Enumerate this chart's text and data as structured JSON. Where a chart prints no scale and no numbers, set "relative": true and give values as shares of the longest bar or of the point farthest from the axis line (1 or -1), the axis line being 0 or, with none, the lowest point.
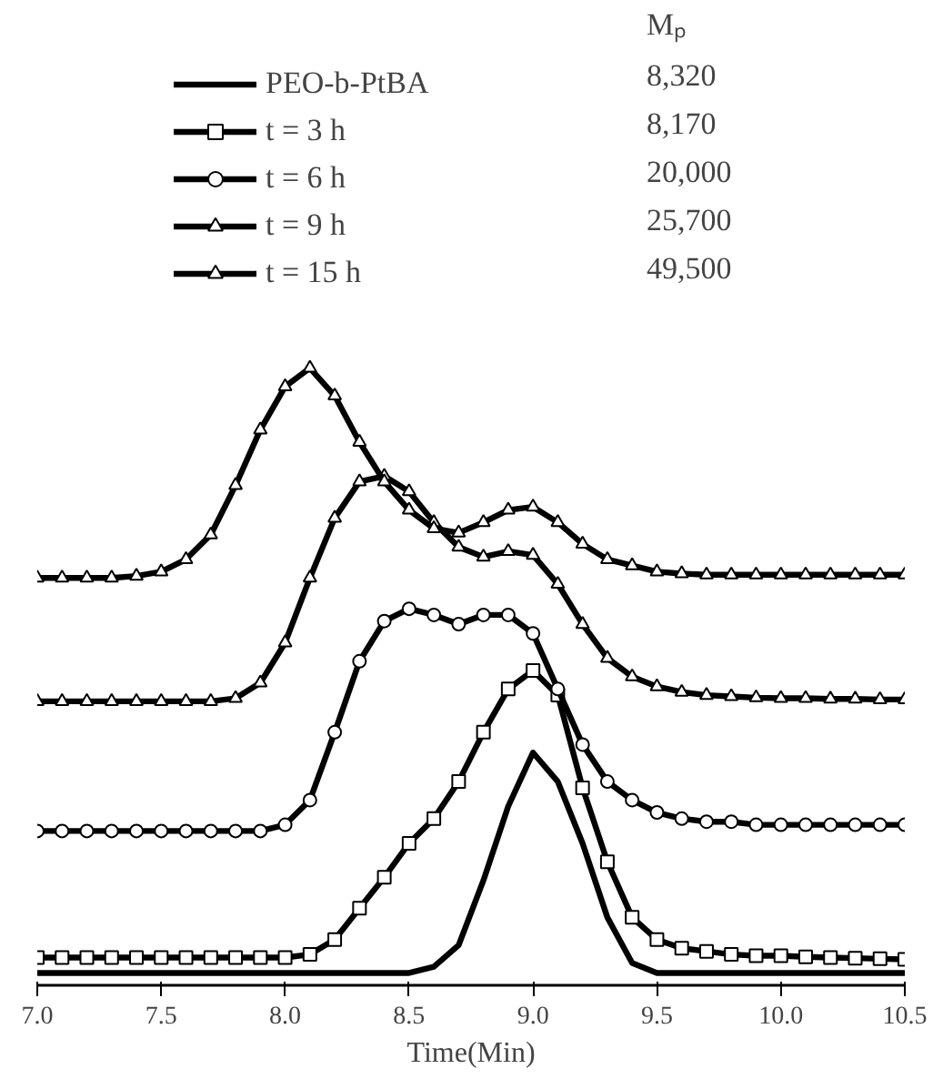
{
  "chart_data": {
    "type": "line",
    "relative": true,
    "xlabel": "Time(Min)",
    "x": [
      7.0,
      7.1,
      7.2,
      7.3,
      7.4,
      7.5,
      7.6,
      7.7,
      7.8,
      7.9,
      8.0,
      8.1,
      8.2,
      8.3,
      8.4,
      8.5,
      8.6,
      8.7,
      8.8,
      8.9,
      9.0,
      9.1,
      9.2,
      9.3,
      9.4,
      9.5,
      9.6,
      9.7,
      9.8,
      9.9,
      10.0,
      10.1,
      10.2,
      10.3,
      10.4,
      10.5
    ],
    "xlim": [
      7.0,
      10.5
    ],
    "xticks": [
      {
        "value": 7.0,
        "label": "7.0"
      },
      {
        "value": 7.5,
        "label": "7.5"
      },
      {
        "value": 8.0,
        "label": "8.0"
      },
      {
        "value": 8.5,
        "label": "8.5"
      },
      {
        "value": 9.0,
        "label": "9.0"
      },
      {
        "value": 9.5,
        "label": "9.5"
      },
      {
        "value": 10.0,
        "label": "10.0"
      },
      {
        "value": 10.5,
        "label": "10.5"
      }
    ],
    "tick_labels": "x",
    "grid": false,
    "legend": "top left",
    "annotations": [
      "Mₚ",
      "8,320",
      "8,170",
      "20,000",
      "25,700",
      "49,500"
    ],
    "series": [
      {
        "name": "PEO-b-PtBA",
        "color": "#000000",
        "marker": "none",
        "values": [
          0.02,
          0.02,
          0.02,
          0.02,
          0.02,
          0.02,
          0.02,
          0.02,
          0.02,
          0.02,
          0.02,
          0.02,
          0.02,
          0.02,
          0.02,
          0.02,
          0.03,
          0.065,
          0.17,
          0.29,
          0.377,
          0.33,
          0.23,
          0.11,
          0.036,
          0.02,
          0.02,
          0.02,
          0.02,
          0.02,
          0.02,
          0.02,
          0.02,
          0.02,
          0.02,
          0.02
        ]
      },
      {
        "name": "t = 3 h",
        "color": "#000000",
        "marker": "square",
        "values": [
          0.045,
          0.045,
          0.045,
          0.045,
          0.045,
          0.045,
          0.045,
          0.045,
          0.045,
          0.045,
          0.045,
          0.05,
          0.074,
          0.125,
          0.175,
          0.23,
          0.27,
          0.33,
          0.41,
          0.48,
          0.51,
          0.47,
          0.32,
          0.2,
          0.11,
          0.074,
          0.06,
          0.055,
          0.05,
          0.048,
          0.048,
          0.046,
          0.045,
          0.044,
          0.043,
          0.042
        ]
      },
      {
        "name": "t = 6 h",
        "color": "#000000",
        "marker": "circle",
        "values": [
          0.25,
          0.25,
          0.25,
          0.25,
          0.25,
          0.25,
          0.25,
          0.25,
          0.25,
          0.25,
          0.26,
          0.3,
          0.41,
          0.525,
          0.59,
          0.61,
          0.6,
          0.585,
          0.6,
          0.6,
          0.57,
          0.48,
          0.39,
          0.33,
          0.3,
          0.28,
          0.27,
          0.265,
          0.265,
          0.26,
          0.26,
          0.26,
          0.26,
          0.26,
          0.26,
          0.26
        ]
      },
      {
        "name": "t = 9 h",
        "color": "#000000",
        "marker": "triangle",
        "values": [
          0.46,
          0.46,
          0.46,
          0.46,
          0.46,
          0.46,
          0.46,
          0.46,
          0.465,
          0.49,
          0.555,
          0.66,
          0.757,
          0.816,
          0.825,
          0.8,
          0.75,
          0.71,
          0.694,
          0.703,
          0.697,
          0.65,
          0.585,
          0.53,
          0.5,
          0.484,
          0.475,
          0.47,
          0.468,
          0.466,
          0.465,
          0.465,
          0.464,
          0.464,
          0.463,
          0.463
        ]
      },
      {
        "name": "t = 15 h",
        "color": "#000000",
        "marker": "triangle",
        "values": [
          0.66,
          0.66,
          0.66,
          0.66,
          0.663,
          0.67,
          0.69,
          0.73,
          0.81,
          0.9,
          0.97,
          1.0,
          0.955,
          0.88,
          0.816,
          0.77,
          0.74,
          0.733,
          0.75,
          0.77,
          0.775,
          0.75,
          0.715,
          0.69,
          0.68,
          0.67,
          0.667,
          0.665,
          0.665,
          0.665,
          0.665,
          0.665,
          0.665,
          0.665,
          0.665,
          0.665
        ]
      }
    ]
  }
}
